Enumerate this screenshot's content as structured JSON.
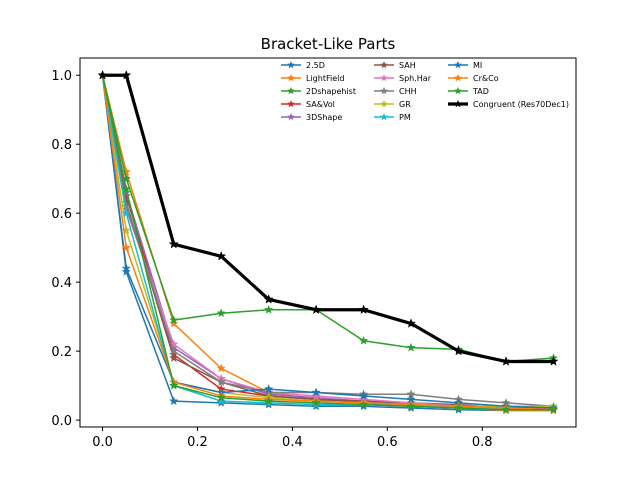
{
  "chart_data": {
    "type": "line",
    "title": "Bracket-Like Parts",
    "xlabel": "",
    "ylabel": "",
    "xlim": [
      -0.0475,
      0.9975
    ],
    "ylim": [
      -0.02,
      1.05
    ],
    "xticks": [
      0.0,
      0.2,
      0.4,
      0.6,
      0.8
    ],
    "xtick_labels": [
      "0.0",
      "0.2",
      "0.4",
      "0.6",
      "0.8"
    ],
    "yticks": [
      0.0,
      0.2,
      0.4,
      0.6,
      0.8,
      1.0
    ],
    "ytick_labels": [
      "0.0",
      "0.2",
      "0.4",
      "0.6",
      "0.8",
      "1.0"
    ],
    "grid": false,
    "legend_position": "top-right",
    "x": [
      0.0,
      0.05,
      0.15,
      0.25,
      0.35,
      0.45,
      0.55,
      0.65,
      0.75,
      0.85,
      0.95
    ],
    "series": [
      {
        "name": "2.5D",
        "color": "#1f77b4",
        "width": 1.5,
        "values": [
          1.0,
          0.43,
          0.055,
          0.05,
          0.045,
          0.04,
          0.04,
          0.035,
          0.03,
          0.028,
          0.028
        ]
      },
      {
        "name": "LightField",
        "color": "#ff7f0e",
        "width": 1.5,
        "values": [
          1.0,
          0.72,
          0.28,
          0.15,
          0.08,
          0.06,
          0.05,
          0.04,
          0.035,
          0.028,
          0.028
        ]
      },
      {
        "name": "2Dshapehist",
        "color": "#2ca02c",
        "width": 1.5,
        "values": [
          1.0,
          0.7,
          0.29,
          0.31,
          0.32,
          0.32,
          0.23,
          0.21,
          0.205,
          0.17,
          0.18
        ]
      },
      {
        "name": "SA&Vol",
        "color": "#d62728",
        "width": 1.5,
        "values": [
          1.0,
          0.65,
          0.19,
          0.09,
          0.07,
          0.06,
          0.05,
          0.04,
          0.035,
          0.03,
          0.03
        ]
      },
      {
        "name": "3DShape",
        "color": "#9467bd",
        "width": 1.5,
        "values": [
          1.0,
          0.66,
          0.21,
          0.12,
          0.075,
          0.065,
          0.055,
          0.045,
          0.04,
          0.035,
          0.035
        ]
      },
      {
        "name": "SAH",
        "color": "#8c564b",
        "width": 1.5,
        "values": [
          1.0,
          0.63,
          0.18,
          0.11,
          0.07,
          0.06,
          0.055,
          0.05,
          0.045,
          0.035,
          0.035
        ]
      },
      {
        "name": "Sph.Har",
        "color": "#e377c2",
        "width": 1.5,
        "values": [
          1.0,
          0.61,
          0.22,
          0.12,
          0.08,
          0.07,
          0.06,
          0.05,
          0.04,
          0.035,
          0.03
        ]
      },
      {
        "name": "CHH",
        "color": "#7f7f7f",
        "width": 1.5,
        "values": [
          1.0,
          0.62,
          0.2,
          0.11,
          0.08,
          0.08,
          0.075,
          0.075,
          0.06,
          0.05,
          0.04
        ]
      },
      {
        "name": "GR",
        "color": "#bcbd22",
        "width": 1.5,
        "values": [
          1.0,
          0.55,
          0.11,
          0.08,
          0.065,
          0.055,
          0.05,
          0.045,
          0.04,
          0.04,
          0.04
        ]
      },
      {
        "name": "PM",
        "color": "#17becf",
        "width": 1.5,
        "values": [
          1.0,
          0.6,
          0.1,
          0.055,
          0.05,
          0.045,
          0.045,
          0.04,
          0.035,
          0.03,
          0.03
        ]
      },
      {
        "name": "MI",
        "color": "#1f77b4",
        "width": 1.5,
        "values": [
          1.0,
          0.44,
          0.11,
          0.08,
          0.09,
          0.08,
          0.07,
          0.06,
          0.05,
          0.04,
          0.035
        ]
      },
      {
        "name": "Cr&Co",
        "color": "#ff7f0e",
        "width": 1.5,
        "values": [
          1.0,
          0.5,
          0.11,
          0.07,
          0.06,
          0.055,
          0.05,
          0.045,
          0.04,
          0.035,
          0.03
        ]
      },
      {
        "name": "TAD",
        "color": "#2ca02c",
        "width": 1.5,
        "values": [
          1.0,
          0.67,
          0.1,
          0.065,
          0.055,
          0.05,
          0.045,
          0.04,
          0.035,
          0.03,
          0.03
        ]
      },
      {
        "name": "Congruent (Res70Dec1)",
        "color": "#000000",
        "width": 3.2,
        "values": [
          1.0,
          1.0,
          0.51,
          0.475,
          0.35,
          0.32,
          0.32,
          0.28,
          0.2,
          0.17,
          0.17
        ]
      }
    ]
  }
}
